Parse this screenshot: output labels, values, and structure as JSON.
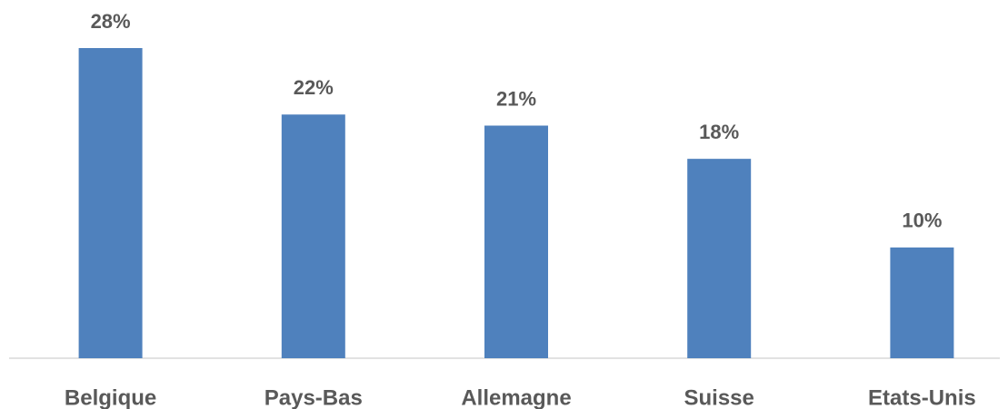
{
  "chart_data": {
    "type": "bar",
    "categories": [
      "Belgique",
      "Pays-Bas",
      "Allemagne",
      "Suisse",
      "Etats-Unis"
    ],
    "values": [
      28,
      22,
      21,
      18,
      10
    ],
    "value_labels": [
      "28%",
      "22%",
      "21%",
      "18%",
      "10%"
    ],
    "color": "#4f81bd"
  }
}
